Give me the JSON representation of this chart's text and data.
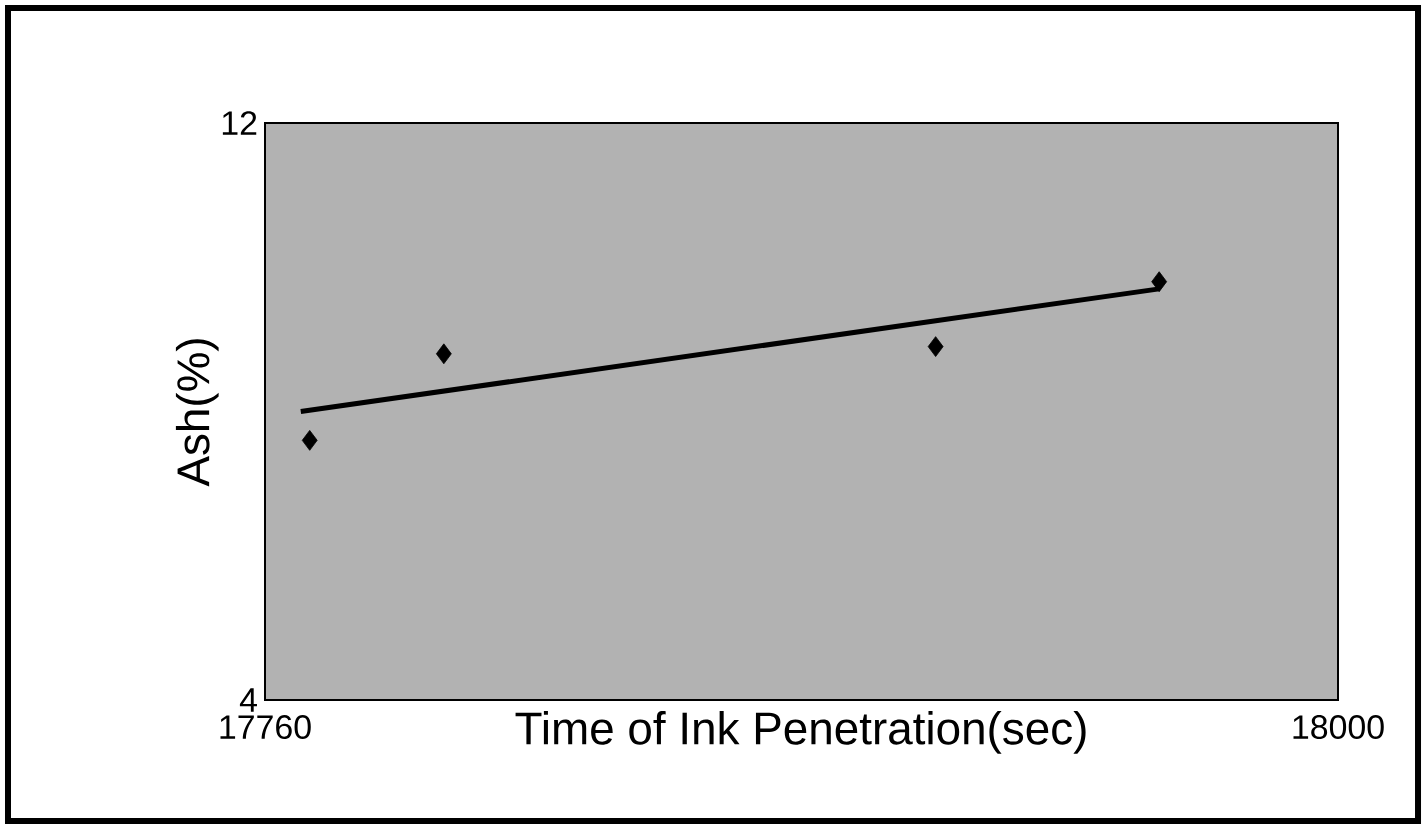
{
  "chart_data": {
    "type": "scatter",
    "xlabel": "Time of Ink Penetration(sec)",
    "ylabel": "Ash(%)",
    "xlim": [
      17760,
      18000
    ],
    "ylim": [
      4,
      12
    ],
    "xticks": [
      17760,
      18000
    ],
    "yticks": [
      4,
      12
    ],
    "series": [
      {
        "color": "#000000",
        "marker": "diamond",
        "x": [
          17770,
          17800,
          17910,
          17960
        ],
        "values": [
          7.6,
          8.8,
          8.9,
          9.8
        ]
      },
      {
        "type": "line",
        "color": "#000000",
        "marker": "none",
        "x": [
          17768,
          17960
        ],
        "values": [
          8.0,
          9.7
        ]
      }
    ]
  }
}
